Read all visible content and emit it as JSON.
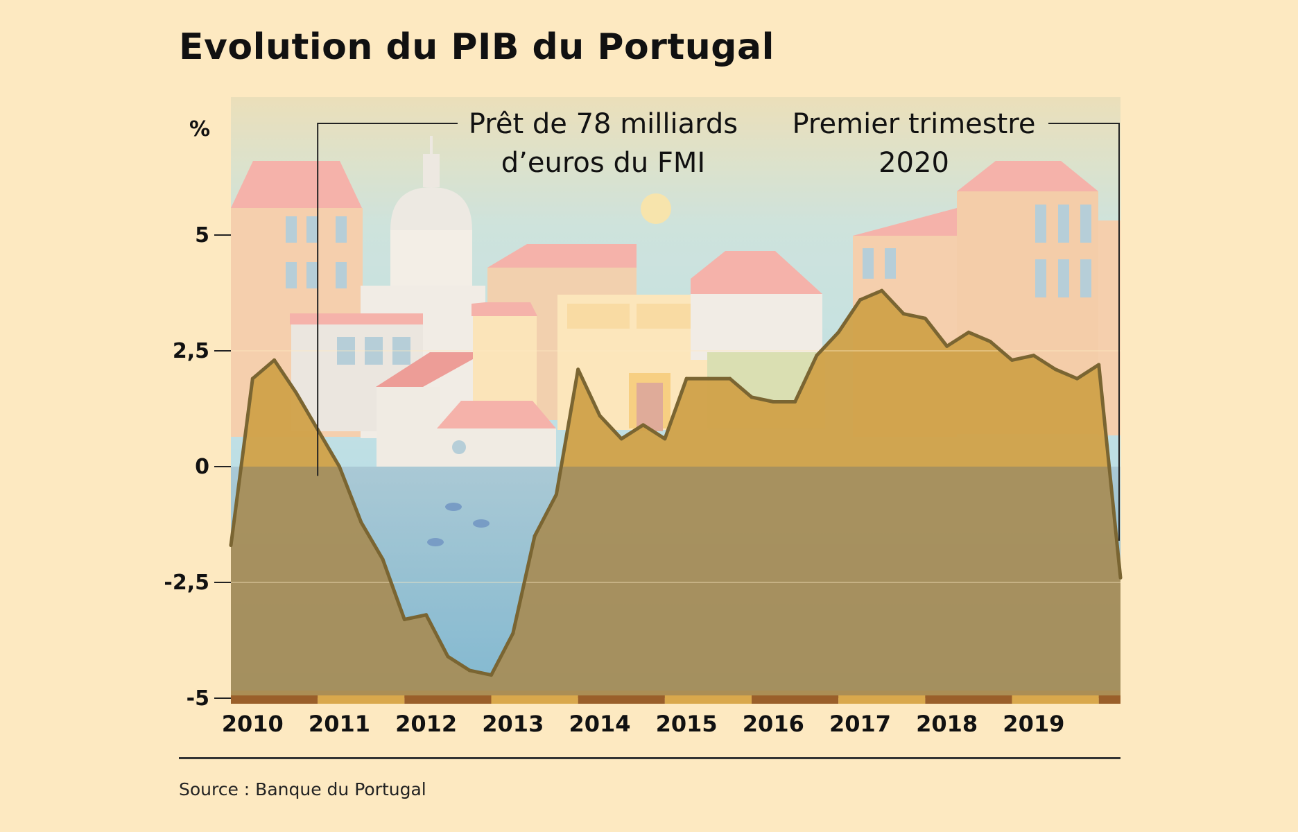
{
  "title": "Evolution du PIB du Portugal",
  "source": "Source : Banque du Portugal",
  "colors": {
    "background": "#fde9c1",
    "area_positive": "#d0a24a",
    "area_negative": "#a78c55",
    "line": "#7a6532"
  },
  "chart_data": {
    "type": "area",
    "ylabel": "%",
    "ylim": [
      -5,
      6.5
    ],
    "yticks": [
      {
        "value": 5,
        "label": "5"
      },
      {
        "value": 2.5,
        "label": "2,5"
      },
      {
        "value": 0,
        "label": "0"
      },
      {
        "value": -2.5,
        "label": "-2,5"
      },
      {
        "value": -5,
        "label": "-5"
      }
    ],
    "categories": [
      "2010",
      "2011",
      "2012",
      "2013",
      "2014",
      "2015",
      "2016",
      "2017",
      "2018",
      "2019"
    ],
    "x_start": 2009.75,
    "x_end": 2020.0,
    "series": [
      {
        "x": [
          2009.75,
          2010.0,
          2010.25,
          2010.5,
          2010.75,
          2011.0,
          2011.25,
          2011.5,
          2011.75,
          2012.0,
          2012.25,
          2012.5,
          2012.75,
          2013.0,
          2013.25,
          2013.5,
          2013.75,
          2014.0,
          2014.25,
          2014.5,
          2014.75,
          2015.0,
          2015.25,
          2015.5,
          2015.75,
          2016.0,
          2016.25,
          2016.5,
          2016.75,
          2017.0,
          2017.25,
          2017.5,
          2017.75,
          2018.0,
          2018.25,
          2018.5,
          2018.75,
          2019.0,
          2019.25,
          2019.5,
          2019.75,
          2020.0
        ],
        "values": [
          -1.7,
          1.9,
          2.3,
          1.6,
          0.8,
          0.0,
          -1.2,
          -2.0,
          -3.3,
          -3.2,
          -4.1,
          -4.4,
          -4.5,
          -3.6,
          -1.5,
          -0.6,
          2.1,
          1.1,
          0.6,
          0.9,
          0.6,
          1.9,
          1.9,
          1.9,
          1.5,
          1.4,
          1.4,
          2.4,
          2.9,
          3.6,
          3.8,
          3.3,
          3.2,
          2.6,
          2.9,
          2.7,
          2.3,
          2.4,
          2.1,
          1.9,
          2.2,
          -2.4
        ]
      }
    ],
    "annotations": [
      {
        "line1": "Prêt de 78 milliards",
        "line2": "d’euros du FMI",
        "x": 2010.75
      },
      {
        "line1": "Premier trimestre",
        "line2": "2020",
        "x": 2020.0
      }
    ]
  }
}
